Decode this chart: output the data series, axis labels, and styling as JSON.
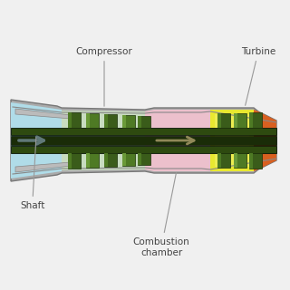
{
  "bg_color": "#f0f0f0",
  "labels": {
    "compressor": "Compressor",
    "turbine": "Turbine",
    "shaft": "Shaft",
    "combustion": "Combustion\nchamber"
  },
  "colors": {
    "light_blue": "#b0dce8",
    "pink": "#ecc0cc",
    "yellow": "#e8e830",
    "yellow2": "#f0f060",
    "orange": "#d86020",
    "dark_green": "#3a5c1a",
    "medium_green": "#4e7a24",
    "light_green": "#6a9a38",
    "gray_casing": "#aaaaaa",
    "gray_casing2": "#bbbbbb",
    "shaft_dark": "#1a2c08",
    "shaft_med": "#2e4a10",
    "arrow_blue": "#607878",
    "arrow_gold": "#908858"
  }
}
